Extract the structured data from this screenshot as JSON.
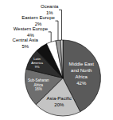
{
  "chart_data": {
    "type": "pie",
    "categories": [
      "Middle East and North Africa",
      "Asia-Pacific",
      "Sub-Saharan Africa",
      "Latin America",
      "Central Asia",
      "Western Europe",
      "Eastern Europe",
      "Oceania"
    ],
    "values": [
      42,
      20,
      16,
      9,
      5,
      4,
      2,
      1
    ],
    "value_labels": [
      "42%",
      "20%",
      "16%",
      "9%",
      "5%",
      "4%",
      "2%",
      "1%"
    ],
    "colors": [
      "#5a5a5a",
      "#c4c4c4",
      "#6e6e6e",
      "#2e2e2e",
      "#111111",
      "#ffffff",
      "#9a9a9a",
      "#d8d8d8"
    ],
    "data_labels": true
  }
}
